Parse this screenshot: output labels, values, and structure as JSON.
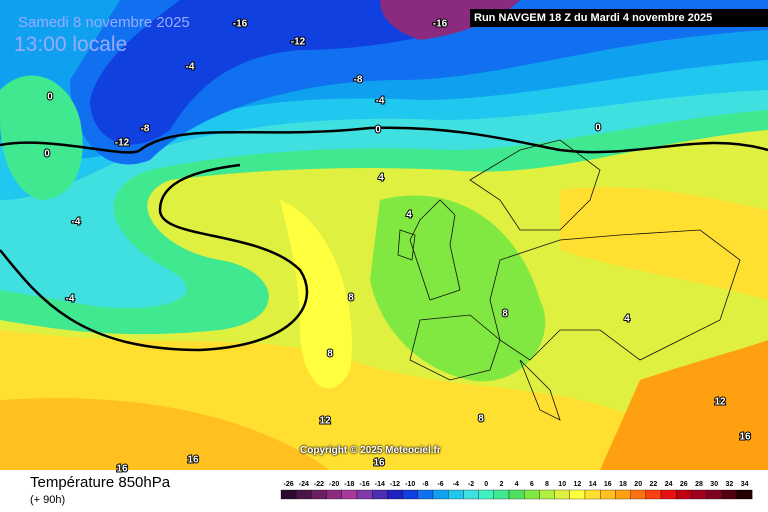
{
  "header": {
    "valid_date": "Samedi 8 novembre 2025",
    "local_time": "13:00 locale",
    "run": "Run NAVGEM 18 Z du Mardi 4 novembre 2025"
  },
  "copyright": "Copyright © 2025 Meteociel.fr",
  "footer": {
    "title": "Température 850hPa",
    "lead": "(+ 90h)"
  },
  "contour_labels": [
    -16,
    -12,
    -16,
    -4,
    -8,
    -4,
    0,
    -8,
    -12,
    0,
    0,
    0,
    -4,
    -4,
    4,
    4,
    8,
    8,
    8,
    4,
    12,
    12,
    8,
    16,
    16,
    16,
    16
  ],
  "legend": {
    "ticks": [
      -26,
      -24,
      -22,
      -20,
      -18,
      -16,
      -14,
      -12,
      -10,
      -8,
      -6,
      -4,
      -2,
      0,
      2,
      4,
      6,
      8,
      10,
      12,
      14,
      16,
      18,
      20,
      22,
      24,
      26,
      28,
      30,
      32,
      34
    ],
    "colors": [
      "#2d0a2d",
      "#4b1448",
      "#6a1f63",
      "#8a2b80",
      "#a8389c",
      "#7d3aa8",
      "#4c2cb0",
      "#2020c0",
      "#1040e0",
      "#1070f0",
      "#10a0f0",
      "#20c8f0",
      "#40e0e0",
      "#40f0c0",
      "#40e890",
      "#50e060",
      "#80e840",
      "#b0f040",
      "#e0f040",
      "#ffff40",
      "#ffe030",
      "#ffc020",
      "#ffa010",
      "#ff7010",
      "#ff4010",
      "#e81010",
      "#c00010",
      "#a00020",
      "#800020",
      "#500010",
      "#200000"
    ]
  }
}
